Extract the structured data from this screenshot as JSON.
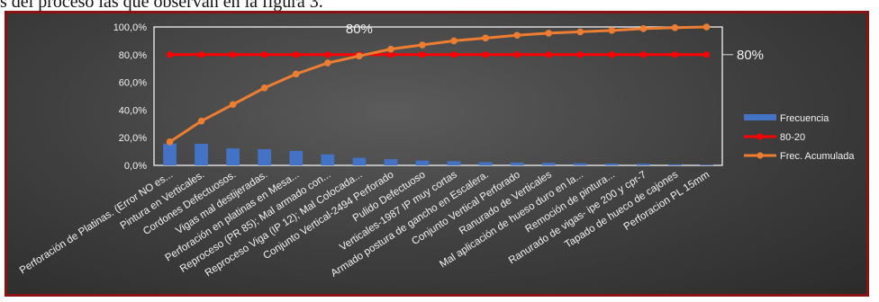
{
  "document": {
    "text_line": "s del proceso las que observan en la figura 3."
  },
  "colors": {
    "frecuencia": "#4472c4",
    "pareto_80_20": "#ff0000",
    "frec_acumulada": "#ed7d31",
    "frame_border": "#8b1212"
  },
  "chart_data": {
    "type": "bar",
    "categories": [
      "Perforación de Platinas. (Error NO es...",
      "Pintura en Verticales.",
      "Cordones Defectuosos.",
      "Vigas mal destijeradas.",
      "Perforación en platinas en Mesa...",
      "Reproceso (PR 85); Mal armado con...",
      "Reproceso Viga (IP 12); Mal Colocada...",
      "Conjunto Vertical-2494 Perforado",
      "Pulido Defectuoso",
      "Verticales-1987 IP muy cortas",
      "Armado postura de gancho en Escalera.",
      "Conjunto Vertical Perforado",
      "Ranurado de Verticales",
      "Mal aplicación de hueso duro en la...",
      "Remoción de pintura...",
      "Ranurado de vigas- ipe 200 y cpr-7",
      "Tapado de hueco de cajones",
      "Perforacion PL 15mm"
    ],
    "series": [
      {
        "name": "Frecuencia",
        "kind": "bar",
        "values": [
          15.8,
          15.6,
          12.3,
          11.7,
          10.5,
          8.0,
          5.5,
          4.5,
          3.5,
          3.0,
          2.3,
          2.0,
          1.8,
          1.5,
          1.3,
          1.2,
          0.8,
          0.5
        ]
      },
      {
        "name": "80-20",
        "kind": "line",
        "values": [
          80,
          80,
          80,
          80,
          80,
          80,
          80,
          80,
          80,
          80,
          80,
          80,
          80,
          80,
          80,
          80,
          80,
          80
        ]
      },
      {
        "name": "Frec. Acumulada",
        "kind": "line",
        "values": [
          17,
          32,
          44,
          56,
          66,
          74,
          79,
          84,
          87,
          90,
          92,
          94,
          95.5,
          96.5,
          97.5,
          98.8,
          99.5,
          100
        ]
      }
    ],
    "y_ticks": [
      "0,0%",
      "20,0%",
      "40,0%",
      "60,0%",
      "80,0%",
      "100,0%"
    ],
    "ylim": [
      0,
      100
    ],
    "annotations": [
      "80%",
      "80%"
    ],
    "legend_position": "right",
    "grid": false
  }
}
